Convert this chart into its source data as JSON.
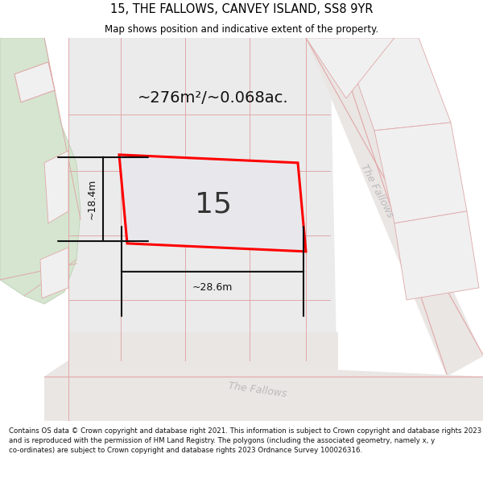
{
  "title_line1": "15, THE FALLOWS, CANVEY ISLAND, SS8 9YR",
  "title_line2": "Map shows position and indicative extent of the property.",
  "area_text": "~276m²/~0.068ac.",
  "plot_number": "15",
  "dim_width": "~28.6m",
  "dim_height": "~18.4m",
  "street_name_right": "The Fallows",
  "street_name_bottom": "The Fallows",
  "footer_text": "Contains OS data © Crown copyright and database right 2021. This information is subject to Crown copyright and database rights 2023 and is reproduced with the permission of HM Land Registry. The polygons (including the associated geometry, namely x, y co-ordinates) are subject to Crown copyright and database rights 2023 Ordnance Survey 100026316.",
  "bg_color": "#f0efee",
  "green_color": "#d5e5d0",
  "gray_plot_color": "#e8e8e8",
  "road_color": "#eae6e4",
  "highlight_fill": "#e8e8ec",
  "plot_border": "#ff0000",
  "dim_color": "#111111",
  "street_color": "#bbbbbb",
  "title_color": "#000000",
  "footer_color": "#111111"
}
